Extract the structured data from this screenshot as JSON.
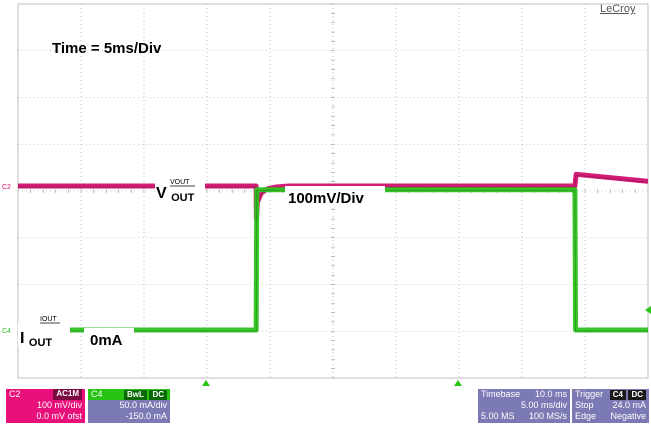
{
  "brand": "LeCroy",
  "annotations": {
    "time_div": "Time = 5ms/Div",
    "vout_scale": "100mV/Div",
    "iout_zero": "0mA"
  },
  "labels": {
    "vout_small": "VOUT",
    "vout_main": "V",
    "vout_sub": "OUT",
    "iout_small": "IOUT",
    "iout_main": "I",
    "iout_sub": "OUT"
  },
  "channel_markers": {
    "c2": "C2",
    "c4": "C4"
  },
  "panels": {
    "c2": {
      "name": "C2",
      "tag": "AC1M",
      "line1": "100 mV/div",
      "line2": "0.0 mV ofst",
      "color": "#e8107a",
      "tag_bg": "#7a0a40"
    },
    "c4": {
      "name": "C4",
      "tag1": "BwL",
      "tag2": "DC",
      "line1": "50.0 mA/div",
      "line2": "-150.0 mA",
      "color": "#27c414",
      "body": "#7c7ab4"
    },
    "timebase": {
      "name": "Timebase",
      "value": "10.0 ms",
      "line1": "5.00 ms/div",
      "line2a": "5.00 MS",
      "line2b": "100 MS/s"
    },
    "trigger": {
      "name": "Trigger",
      "tag1": "C4",
      "tag2": "DC",
      "k1": "Stop",
      "v1": "24.0 mA",
      "k2": "Edge",
      "v2": "Negative"
    }
  },
  "colors": {
    "vout": "#d0106e",
    "iout": "#2cc21c",
    "grid": "#9a9a9a"
  },
  "chart_data": {
    "type": "line",
    "title": "",
    "x_unit": "ms",
    "x_range": [
      0,
      50
    ],
    "x_divisions": 10,
    "time_per_div_ms": 5,
    "series": [
      {
        "name": "VOUT",
        "unit": "mV",
        "scale_per_div": 100,
        "offset": 0,
        "points": [
          [
            0,
            0
          ],
          [
            18.9,
            0
          ],
          [
            18.92,
            -70
          ],
          [
            19.0,
            -35
          ],
          [
            19.3,
            -15
          ],
          [
            19.8,
            -6
          ],
          [
            20.5,
            -2
          ],
          [
            21.5,
            0
          ],
          [
            44.2,
            0
          ],
          [
            44.3,
            25
          ],
          [
            50,
            10
          ]
        ]
      },
      {
        "name": "IOUT",
        "unit": "mA",
        "scale_per_div": 50,
        "offset": -150,
        "points": [
          [
            0,
            0
          ],
          [
            18.9,
            0
          ],
          [
            18.95,
            150
          ],
          [
            44.2,
            150
          ],
          [
            44.25,
            0
          ],
          [
            50,
            0
          ]
        ]
      }
    ],
    "trigger": {
      "time_ms": 44.2,
      "source": "C4",
      "level": "24.0 mA",
      "edge": "Negative"
    }
  }
}
